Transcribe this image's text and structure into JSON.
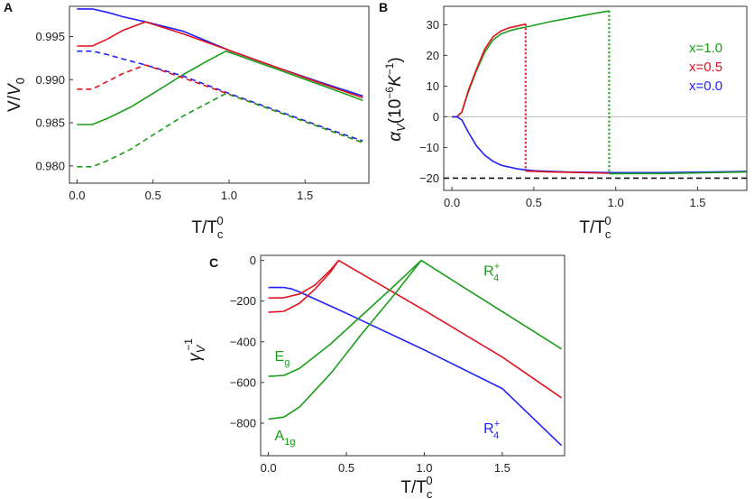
{
  "figure": {
    "panels": [
      "A",
      "B",
      "C"
    ]
  },
  "colors": {
    "blue": "#1f1fff",
    "red": "#e0141e",
    "green": "#1a9e1a",
    "black": "#111111",
    "zero_line": "#bbbbbb"
  },
  "chart_data": [
    {
      "panel": "A",
      "type": "line",
      "title": "",
      "xlabel": "T/T_c^0",
      "ylabel": "V/V_0",
      "xlim": [
        -0.05,
        1.92
      ],
      "ylim": [
        0.978,
        0.9985
      ],
      "xticks": [
        0.0,
        0.5,
        1.0,
        1.5
      ],
      "xtick_labels": [
        "0.0",
        "0.5",
        "1.0",
        "1.5"
      ],
      "yticks": [
        0.98,
        0.985,
        0.99,
        0.995
      ],
      "ytick_labels": [
        "0.980",
        "0.985",
        "0.990",
        "0.995"
      ],
      "series": [
        {
          "name": "x=0.0 solid",
          "color": "blue",
          "style": "solid",
          "x": [
            0.0,
            0.1,
            0.2,
            0.3,
            0.45,
            0.7,
            1.0,
            1.3,
            1.6,
            1.88
          ],
          "y": [
            0.9982,
            0.9982,
            0.9978,
            0.9973,
            0.9967,
            0.9956,
            0.9934,
            0.9915,
            0.9897,
            0.9881
          ]
        },
        {
          "name": "x=0.5 solid",
          "color": "red",
          "style": "solid",
          "x": [
            0.0,
            0.1,
            0.2,
            0.3,
            0.45,
            0.7,
            1.0,
            1.3,
            1.6,
            1.88
          ],
          "y": [
            0.9939,
            0.9939,
            0.9947,
            0.9957,
            0.9967,
            0.9953,
            0.9934,
            0.9915,
            0.9896,
            0.9879
          ]
        },
        {
          "name": "x=1.0 solid",
          "color": "green",
          "style": "solid",
          "x": [
            0.0,
            0.1,
            0.2,
            0.35,
            0.5,
            0.7,
            0.85,
            0.98,
            1.3,
            1.6,
            1.88
          ],
          "y": [
            0.9848,
            0.9848,
            0.9855,
            0.9868,
            0.9884,
            0.9906,
            0.9921,
            0.9933,
            0.9913,
            0.9894,
            0.9876
          ]
        },
        {
          "name": "x=0.0 dashed",
          "color": "blue",
          "style": "dashed",
          "x": [
            0.0,
            0.1,
            0.2,
            0.3,
            0.45,
            0.7,
            1.0,
            1.3,
            1.6,
            1.88
          ],
          "y": [
            0.9933,
            0.9933,
            0.9929,
            0.9924,
            0.9917,
            0.9904,
            0.9884,
            0.9865,
            0.9846,
            0.9829
          ]
        },
        {
          "name": "x=0.5 dashed",
          "color": "red",
          "style": "dashed",
          "x": [
            0.0,
            0.1,
            0.2,
            0.3,
            0.45,
            0.7,
            1.0,
            1.3,
            1.6,
            1.88
          ],
          "y": [
            0.9889,
            0.9889,
            0.9898,
            0.9907,
            0.9917,
            0.9902,
            0.9883,
            0.9864,
            0.9845,
            0.9827
          ]
        },
        {
          "name": "x=1.0 dashed",
          "color": "green",
          "style": "dashed",
          "x": [
            0.0,
            0.1,
            0.2,
            0.35,
            0.5,
            0.7,
            0.85,
            0.98,
            1.3,
            1.6,
            1.88
          ],
          "y": [
            0.9799,
            0.9799,
            0.9806,
            0.9819,
            0.9836,
            0.9858,
            0.9872,
            0.9884,
            0.9864,
            0.9845,
            0.9827
          ]
        }
      ]
    },
    {
      "panel": "B",
      "type": "line",
      "title": "",
      "xlabel": "T/T_c^0",
      "ylabel": "α_V (10^-6 K^-1)",
      "xlim": [
        -0.05,
        1.8
      ],
      "ylim": [
        -24,
        36
      ],
      "xticks": [
        0.0,
        0.5,
        1.0,
        1.5
      ],
      "xtick_labels": [
        "0.0",
        "0.5",
        "1.0",
        "1.5"
      ],
      "yticks": [
        -20,
        -10,
        0,
        10,
        20,
        30
      ],
      "ytick_labels": [
        "−20",
        "−10",
        "0",
        "10",
        "20",
        "30"
      ],
      "legend": [
        {
          "label": "x=1.0",
          "color": "green"
        },
        {
          "label": "x=0.5",
          "color": "red"
        },
        {
          "label": "x=0.0",
          "color": "blue"
        }
      ],
      "series": [
        {
          "name": "x=1.0",
          "color": "green",
          "style": "solid",
          "x": [
            0.0,
            0.03,
            0.06,
            0.1,
            0.15,
            0.2,
            0.25,
            0.3,
            0.35,
            0.4,
            0.45,
            0.6,
            0.8,
            0.96
          ],
          "y": [
            0,
            0,
            1.5,
            8,
            15,
            21,
            25,
            27,
            28,
            28.7,
            29.2,
            31,
            33,
            34.5
          ]
        },
        {
          "name": "x=0.5",
          "color": "red",
          "style": "solid",
          "x": [
            0.0,
            0.03,
            0.06,
            0.1,
            0.15,
            0.2,
            0.25,
            0.3,
            0.35,
            0.4,
            0.45
          ],
          "y": [
            0,
            0,
            1.5,
            8.5,
            15.5,
            22,
            26,
            28,
            29,
            29.6,
            30.2
          ]
        },
        {
          "name": "x=0.0",
          "color": "blue",
          "style": "solid",
          "x": [
            0.0,
            0.03,
            0.06,
            0.1,
            0.15,
            0.2,
            0.25,
            0.3,
            0.4,
            0.5,
            0.7,
            1.0,
            1.3,
            1.6,
            1.8
          ],
          "y": [
            0,
            0,
            -1,
            -5,
            -9.5,
            -12.5,
            -14.5,
            -15.8,
            -17,
            -17.6,
            -18,
            -18.2,
            -18.2,
            -18,
            -17.8
          ]
        },
        {
          "name": "x=1.0 low-T branch",
          "color": "green",
          "style": "solid",
          "x": [
            0.96,
            1.1,
            1.3,
            1.5,
            1.7,
            1.8
          ],
          "y": [
            -18.6,
            -18.5,
            -18.5,
            -18.3,
            -18.1,
            -18.0
          ]
        },
        {
          "name": "x=0.5 branch",
          "color": "red",
          "style": "solid",
          "x": [
            0.45,
            0.6,
            0.8,
            0.96
          ],
          "y": [
            -17.7,
            -18.0,
            -18.2,
            -18.4
          ]
        },
        {
          "name": "x=0.5 jump",
          "color": "red",
          "style": "dotted",
          "x": [
            0.45,
            0.45
          ],
          "y": [
            30.2,
            -17.7
          ]
        },
        {
          "name": "x=1.0 jump",
          "color": "green",
          "style": "dotted",
          "x": [
            0.96,
            0.96
          ],
          "y": [
            34.5,
            -18.6
          ]
        },
        {
          "name": "reference",
          "color": "black",
          "style": "dashed",
          "x": [
            -0.05,
            1.8
          ],
          "y": [
            -20,
            -20
          ]
        }
      ]
    },
    {
      "panel": "C",
      "type": "line",
      "title": "",
      "xlabel": "T/T_c^0",
      "ylabel": "γ_V^-1",
      "xlim": [
        -0.05,
        1.9
      ],
      "ylim": [
        -960,
        25
      ],
      "xticks": [
        0.0,
        0.5,
        1.0,
        1.5
      ],
      "xtick_labels": [
        "0.0",
        "0.5",
        "1.0",
        "1.5"
      ],
      "yticks": [
        -800,
        -600,
        -400,
        -200,
        0
      ],
      "ytick_labels": [
        "−800",
        "−600",
        "−400",
        "−200",
        "0"
      ],
      "annotations": [
        {
          "text": "R",
          "sup": "+",
          "sub": "4",
          "color": "green",
          "x": 1.38,
          "y": -75
        },
        {
          "text": "E",
          "sub": "g",
          "color": "green",
          "x": 0.04,
          "y": -495
        },
        {
          "text": "A",
          "sub": "1g",
          "color": "green",
          "x": 0.04,
          "y": -885
        },
        {
          "text": "R",
          "sup": "+",
          "sub": "4",
          "color": "blue",
          "x": 1.38,
          "y": -850
        }
      ],
      "series": [
        {
          "name": "blue R4+",
          "color": "blue",
          "style": "solid",
          "x": [
            0.0,
            0.1,
            0.15,
            0.2,
            0.3,
            0.5,
            1.0,
            1.5,
            1.88
          ],
          "y": [
            -133,
            -133,
            -140,
            -155,
            -190,
            -260,
            -440,
            -630,
            -910
          ]
        },
        {
          "name": "red upper",
          "color": "red",
          "style": "solid",
          "x": [
            0.0,
            0.1,
            0.2,
            0.3,
            0.4,
            0.45,
            1.0,
            1.5,
            1.88
          ],
          "y": [
            -185,
            -183,
            -165,
            -120,
            -45,
            0,
            -245,
            -475,
            -675
          ]
        },
        {
          "name": "red lower",
          "color": "red",
          "style": "solid",
          "x": [
            0.0,
            0.1,
            0.2,
            0.3,
            0.4,
            0.45
          ],
          "y": [
            -255,
            -250,
            -210,
            -140,
            -55,
            0
          ]
        },
        {
          "name": "green upper Eg",
          "color": "green",
          "style": "solid",
          "x": [
            0.0,
            0.1,
            0.2,
            0.4,
            0.6,
            0.8,
            0.98,
            1.3,
            1.6,
            1.88
          ],
          "y": [
            -570,
            -565,
            -530,
            -410,
            -270,
            -130,
            0,
            -155,
            -300,
            -435
          ]
        },
        {
          "name": "green lower A1g",
          "color": "green",
          "style": "solid",
          "x": [
            0.0,
            0.1,
            0.2,
            0.4,
            0.6,
            0.8,
            0.98
          ],
          "y": [
            -780,
            -770,
            -720,
            -555,
            -360,
            -175,
            0
          ]
        }
      ]
    }
  ]
}
